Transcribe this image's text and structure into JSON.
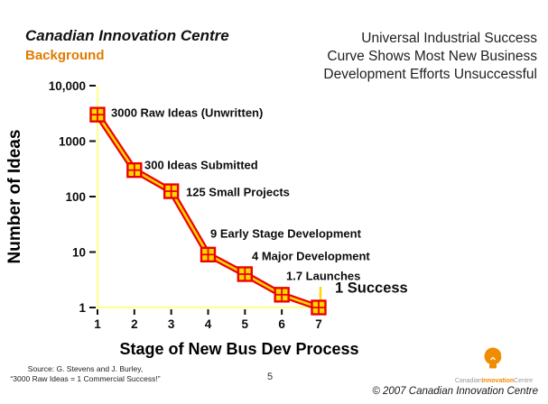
{
  "header": {
    "line1": "Canadian Innovation Centre",
    "line2": "Background"
  },
  "right_title": {
    "lines": [
      "Universal Industrial Success",
      "Curve Shows Most New Business",
      "Development Efforts Unsuccessful"
    ]
  },
  "chart_data": {
    "type": "line",
    "title": "Universal Industrial Success Curve Shows Most New Business Development Efforts Unsuccessful",
    "xlabel": "Stage of New Bus Dev Process",
    "ylabel": "Number of Ideas",
    "x": [
      1,
      2,
      3,
      4,
      5,
      6,
      7
    ],
    "values": [
      3000,
      300,
      125,
      9,
      4,
      1.7,
      1
    ],
    "point_labels": [
      "3000 Raw Ideas (Unwritten)",
      "300 Ideas Submitted",
      "125 Small Projects",
      "9 Early Stage Development",
      "4 Major Development",
      "1.7 Launches",
      "1 Success"
    ],
    "x_tick_labels": [
      "1",
      "2",
      "3",
      "4",
      "5",
      "6",
      "7"
    ],
    "y_tick_labels": [
      "10,000",
      "1000",
      "100",
      "10",
      "1"
    ],
    "y_tick_values": [
      10000,
      1000,
      100,
      10,
      1
    ],
    "y_scale": "log",
    "ylim": [
      1,
      10000
    ],
    "grid": false,
    "legend": "none",
    "colors": {
      "line_red": "#EE0000",
      "line_yellow_core": "#FFD800",
      "marker_fill": "#FFD800",
      "marker_border": "#EE0000",
      "axis_yellow": "#FFFF99",
      "tick_black": "#111111"
    }
  },
  "footer": {
    "source_line1": "Source: G. Stevens and J. Burley,",
    "source_line2": "“3000 Raw Ideas = 1 Commercial Success!”",
    "page_number": "5",
    "copyright": "© 2007 Canadian Innovation Centre",
    "logo": {
      "brand_part1": "Canadian",
      "brand_part2": "Innovation",
      "brand_part3": "Centre"
    }
  }
}
